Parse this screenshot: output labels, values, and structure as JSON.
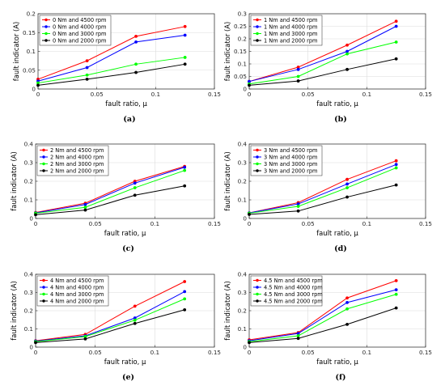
{
  "chart_data": [
    {
      "type": "line",
      "panel_label": "(a)",
      "xlabel": "fault ratio, μ",
      "ylabel": "fault indicator (A)",
      "xlim": [
        0,
        0.15
      ],
      "ylim": [
        0,
        0.2
      ],
      "xticks": [
        "0",
        "0.05",
        "0.1",
        "0.15"
      ],
      "yticks": [
        "0",
        "0.05",
        "0.1",
        "0.15",
        "0.2"
      ],
      "grid": true,
      "legend_position": "top-left",
      "x": [
        0,
        0.0417,
        0.0833,
        0.125
      ],
      "series": [
        {
          "name": "0 Nm and 4500 rpm",
          "color": "#ff0000",
          "values": [
            0.026,
            0.075,
            0.14,
            0.166
          ]
        },
        {
          "name": "0 Nm and 4000 rpm",
          "color": "#0000ff",
          "values": [
            0.021,
            0.057,
            0.125,
            0.143
          ]
        },
        {
          "name": "0 Nm and 3000 rpm",
          "color": "#00ff00",
          "values": [
            0.016,
            0.037,
            0.066,
            0.084
          ]
        },
        {
          "name": "0 Nm and 2000 rpm",
          "color": "#000000",
          "values": [
            0.01,
            0.026,
            0.044,
            0.066
          ]
        }
      ]
    },
    {
      "type": "line",
      "panel_label": "(b)",
      "xlabel": "fault ratio, μ",
      "ylabel": "fault indicator (A)",
      "xlim": [
        0,
        0.15
      ],
      "ylim": [
        0,
        0.3
      ],
      "xticks": [
        "0",
        "0.05",
        "0.1",
        "0.15"
      ],
      "yticks": [
        "0",
        "0.05",
        "0.1",
        "0.15",
        "0.2",
        "0.25",
        "0.3"
      ],
      "grid": true,
      "legend_position": "top-left",
      "x": [
        0,
        0.0417,
        0.0833,
        0.125
      ],
      "series": [
        {
          "name": "1 Nm and 4500 rpm",
          "color": "#ff0000",
          "values": [
            0.03,
            0.087,
            0.175,
            0.27
          ]
        },
        {
          "name": "1 Nm and 4000 rpm",
          "color": "#0000ff",
          "values": [
            0.03,
            0.078,
            0.15,
            0.25
          ]
        },
        {
          "name": "1 Nm and 3000 rpm",
          "color": "#00ff00",
          "values": [
            0.02,
            0.05,
            0.14,
            0.187
          ]
        },
        {
          "name": "1 Nm and 2000 rpm",
          "color": "#000000",
          "values": [
            0.015,
            0.032,
            0.078,
            0.12
          ]
        }
      ]
    },
    {
      "type": "line",
      "panel_label": "(c)",
      "xlabel": "fault ratio, μ",
      "ylabel": "fault indicator (A)",
      "xlim": [
        0,
        0.15
      ],
      "ylim": [
        0,
        0.4
      ],
      "xticks": [
        "0",
        "0.05",
        "0.1",
        "0.15"
      ],
      "yticks": [
        "0",
        "0.1",
        "0.2",
        "0.3",
        "0.4"
      ],
      "grid": true,
      "legend_position": "top-left",
      "x": [
        0,
        0.0417,
        0.0833,
        0.125
      ],
      "series": [
        {
          "name": "2 Nm and 4500 rpm",
          "color": "#ff0000",
          "values": [
            0.032,
            0.082,
            0.2,
            0.28
          ]
        },
        {
          "name": "2 Nm and 4000 rpm",
          "color": "#0000ff",
          "values": [
            0.03,
            0.075,
            0.19,
            0.275
          ]
        },
        {
          "name": "2 Nm and 3000 rpm",
          "color": "#00ff00",
          "values": [
            0.028,
            0.06,
            0.165,
            0.258
          ]
        },
        {
          "name": "2 Nm and 2000 rpm",
          "color": "#000000",
          "values": [
            0.02,
            0.045,
            0.125,
            0.175
          ]
        }
      ]
    },
    {
      "type": "line",
      "panel_label": "(d)",
      "xlabel": "fault ratio, μ",
      "ylabel": "fault indicator (A)",
      "xlim": [
        0,
        0.15
      ],
      "ylim": [
        0,
        0.4
      ],
      "xticks": [
        "0",
        "0.05",
        "0.1",
        "0.15"
      ],
      "yticks": [
        "0",
        "0.1",
        "0.2",
        "0.3",
        "0.4"
      ],
      "grid": true,
      "legend_position": "top-left",
      "x": [
        0,
        0.0417,
        0.0833,
        0.125
      ],
      "series": [
        {
          "name": "3 Nm and 4500 rpm",
          "color": "#ff0000",
          "values": [
            0.03,
            0.085,
            0.21,
            0.31
          ]
        },
        {
          "name": "3 Nm and 4000 rpm",
          "color": "#0000ff",
          "values": [
            0.03,
            0.078,
            0.185,
            0.29
          ]
        },
        {
          "name": "3 Nm and 3000 rpm",
          "color": "#00ff00",
          "values": [
            0.028,
            0.065,
            0.165,
            0.272
          ]
        },
        {
          "name": "3 Nm and 2000 rpm",
          "color": "#000000",
          "values": [
            0.022,
            0.04,
            0.115,
            0.18
          ]
        }
      ]
    },
    {
      "type": "line",
      "panel_label": "(e)",
      "xlabel": "fault ratio, μ",
      "ylabel": "fault indicator (A)",
      "xlim": [
        0,
        0.15
      ],
      "ylim": [
        0,
        0.4
      ],
      "xticks": [
        "0",
        "0.05",
        "0.1",
        "0.15"
      ],
      "yticks": [
        "0",
        "0.1",
        "0.2",
        "0.3",
        "0.4"
      ],
      "grid": true,
      "legend_position": "top-left",
      "x": [
        0,
        0.0417,
        0.0833,
        0.125
      ],
      "series": [
        {
          "name": "4 Nm and 4500 rpm",
          "color": "#ff0000",
          "values": [
            0.035,
            0.07,
            0.225,
            0.36
          ]
        },
        {
          "name": "4 Nm and 4000 rpm",
          "color": "#0000ff",
          "values": [
            0.033,
            0.062,
            0.16,
            0.305
          ]
        },
        {
          "name": "4 Nm and 3000 rpm",
          "color": "#00ff00",
          "values": [
            0.03,
            0.058,
            0.148,
            0.265
          ]
        },
        {
          "name": "4 Nm and 2000 rpm",
          "color": "#000000",
          "values": [
            0.025,
            0.045,
            0.13,
            0.205
          ]
        }
      ]
    },
    {
      "type": "line",
      "panel_label": "(f)",
      "xlabel": "fault ratio, μ",
      "ylabel": "fault indicator (A)",
      "xlim": [
        0,
        0.15
      ],
      "ylim": [
        0,
        0.4
      ],
      "xticks": [
        "0",
        "0.05",
        "0.1",
        "0.15"
      ],
      "yticks": [
        "0",
        "0.1",
        "0.2",
        "0.3",
        "0.4"
      ],
      "grid": true,
      "legend_position": "top-left",
      "x": [
        0,
        0.0417,
        0.0833,
        0.125
      ],
      "series": [
        {
          "name": "4.5 Nm and 4500 rpm",
          "color": "#ff0000",
          "values": [
            0.04,
            0.08,
            0.27,
            0.365
          ]
        },
        {
          "name": "4.5 Nm and 4000 rpm",
          "color": "#0000ff",
          "values": [
            0.035,
            0.075,
            0.245,
            0.315
          ]
        },
        {
          "name": "4.5 Nm and 3000 rpm",
          "color": "#00ff00",
          "values": [
            0.03,
            0.062,
            0.21,
            0.29
          ]
        },
        {
          "name": "4.5 Nm and 2000 rpm",
          "color": "#000000",
          "values": [
            0.025,
            0.048,
            0.125,
            0.215
          ]
        }
      ]
    }
  ]
}
